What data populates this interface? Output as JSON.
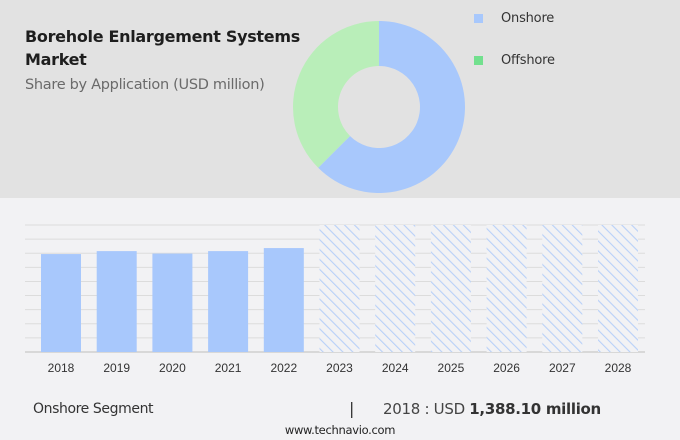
{
  "header": {
    "title": "Borehole Enlargement Systems Market",
    "subtitle": "Share by Application (USD million)"
  },
  "legend": {
    "items": [
      {
        "label": "Onshore",
        "color": "#a8c8fc"
      },
      {
        "label": "Offshore",
        "color": "#72e08e"
      }
    ]
  },
  "footer": {
    "segment": "Onshore Segment",
    "separator": "|",
    "year_prefix": "2018 : USD ",
    "value": "1,388.10 million",
    "website": "www.technavio.com"
  },
  "colors": {
    "top_background": "#e2e2e2",
    "bottom_background": "#f2f2f4",
    "onshore": "#a8c8fc",
    "offshore_donut": "#b9eeb9",
    "offshore_legend": "#72e08e",
    "forecast_hatch": "#b8d0f8",
    "gridline": "#dcdcdc"
  },
  "chart_data": [
    {
      "type": "pie",
      "title": "Borehole Enlargement Systems Market - Share by Application (USD million)",
      "donut": true,
      "labels": [
        "Onshore",
        "Offshore"
      ],
      "values": [
        62.5,
        37.5
      ],
      "unit": "%",
      "legend_position": "right"
    },
    {
      "type": "bar",
      "title": "Onshore Segment",
      "categories": [
        "2018",
        "2019",
        "2020",
        "2021",
        "2022",
        "2023",
        "2024",
        "2025",
        "2026",
        "2027",
        "2028"
      ],
      "series": [
        {
          "name": "Onshore (historic)",
          "values": [
            1388.1,
            1430,
            1395,
            1430,
            1473,
            null,
            null,
            null,
            null,
            null,
            null
          ]
        },
        {
          "name": "Onshore (forecast, hatched)",
          "values": [
            null,
            null,
            null,
            null,
            null,
            1800,
            1800,
            1800,
            1800,
            1800,
            1800
          ]
        }
      ],
      "annotation": "2018 : USD 1,388.10 million",
      "xlabel": "",
      "ylabel": "USD million",
      "ylim": [
        0,
        1800
      ],
      "grid": true,
      "gridlines": 9
    }
  ]
}
